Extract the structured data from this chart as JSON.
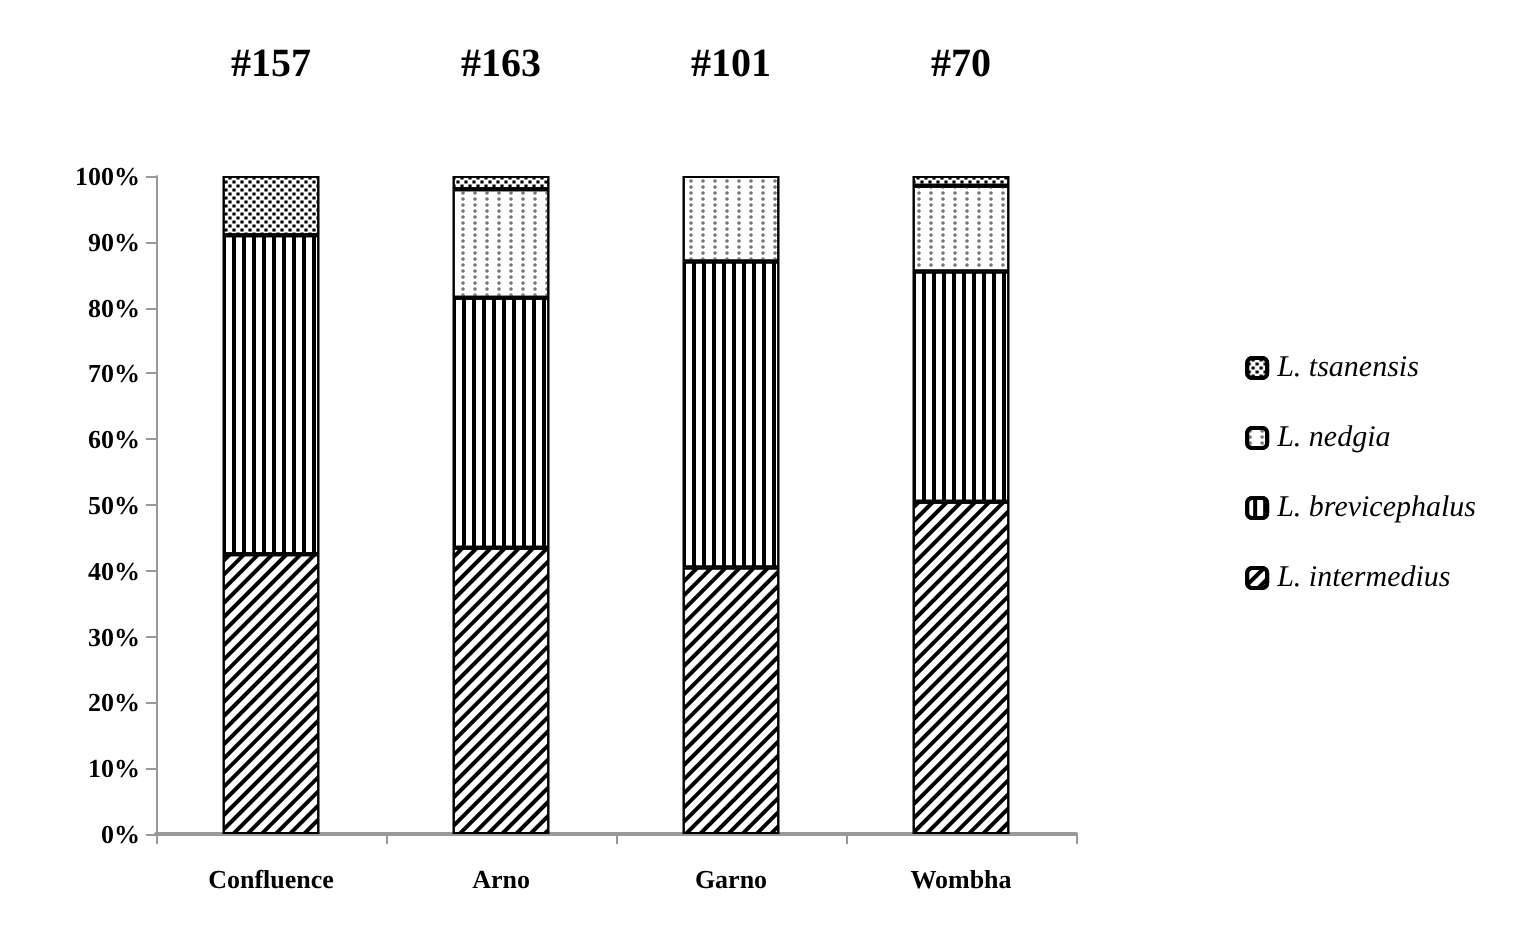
{
  "chart_data": {
    "type": "bar",
    "stacked": true,
    "categories": [
      "Confluence",
      "Arno",
      "Garno",
      "Wombha"
    ],
    "series": [
      {
        "name": "L. intermedius",
        "color": "#ffffff",
        "values": [
          42.5,
          43.5,
          40.5,
          50.5
        ]
      },
      {
        "name": "L. brevicephalus",
        "color": "#ffffff",
        "values": [
          48.5,
          38,
          46.5,
          35
        ]
      },
      {
        "name": "L. nedgia",
        "color": "#ffffff",
        "values": [
          0,
          16.5,
          13,
          13
        ]
      },
      {
        "name": "L. tsanensis",
        "color": "#ffffff",
        "values": [
          9,
          2,
          0,
          1.5
        ]
      }
    ],
    "ylim": [
      0,
      100
    ],
    "yticks": [
      {
        "value": 0,
        "label": "0%"
      },
      {
        "value": 10,
        "label": "10%"
      },
      {
        "value": 20,
        "label": "20%"
      },
      {
        "value": 30,
        "label": "30%"
      },
      {
        "value": 40,
        "label": "40%"
      },
      {
        "value": 50,
        "label": "50%"
      },
      {
        "value": 60,
        "label": "60%"
      },
      {
        "value": 70,
        "label": "70%"
      },
      {
        "value": 80,
        "label": "80%"
      },
      {
        "value": 90,
        "label": "90%"
      },
      {
        "value": 100,
        "label": "100%"
      }
    ],
    "annotations": [
      "#157",
      "#163",
      "#101",
      "#70"
    ],
    "grid": false,
    "legend": "right"
  }
}
